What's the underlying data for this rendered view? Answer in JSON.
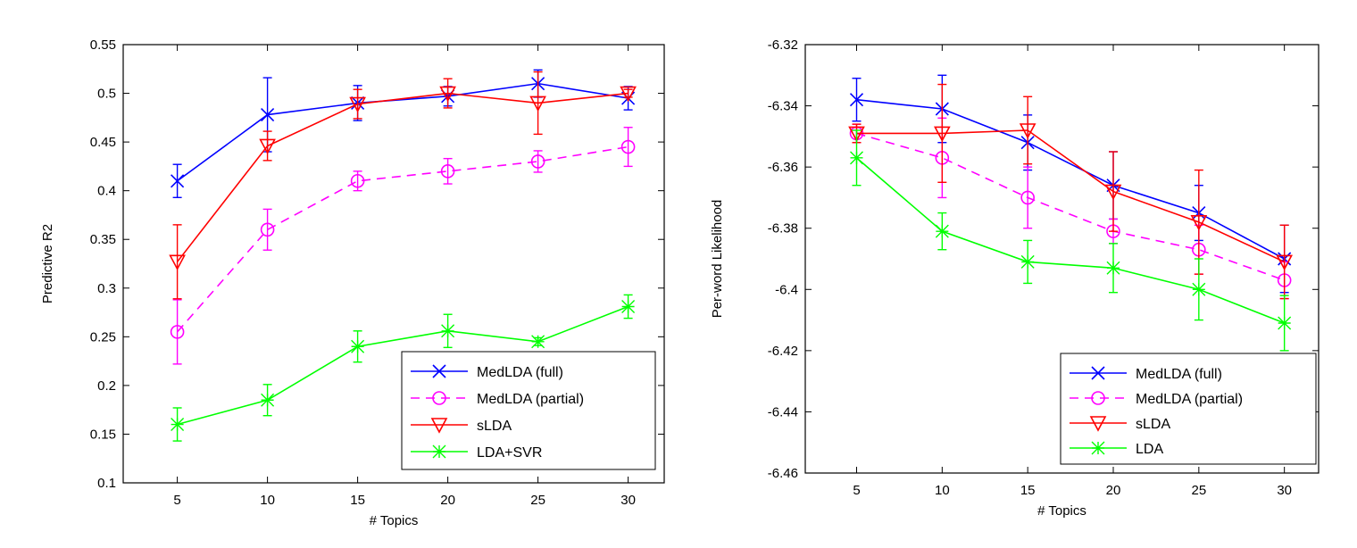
{
  "chart_data": [
    {
      "type": "line",
      "xlabel": "# Topics",
      "ylabel": "Predictive R2",
      "x": [
        5,
        10,
        15,
        20,
        25,
        30
      ],
      "xticks": [
        "5",
        "10",
        "15",
        "20",
        "25",
        "30"
      ],
      "xlim": [
        2,
        32
      ],
      "ylim": [
        0.1,
        0.55
      ],
      "yticks": [
        "0.1",
        "0.15",
        "0.2",
        "0.25",
        "0.3",
        "0.35",
        "0.4",
        "0.45",
        "0.5",
        "0.55"
      ],
      "grid": false,
      "legend_position": "bottom-right",
      "series": [
        {
          "name": "MedLDA (full)",
          "color": "#0000ff",
          "dash": "solid",
          "marker": "x",
          "values": [
            0.41,
            0.478,
            0.49,
            0.497,
            0.51,
            0.495
          ],
          "errors": [
            0.017,
            0.038,
            0.018,
            0.01,
            0.014,
            0.012
          ]
        },
        {
          "name": "MedLDA (partial)",
          "color": "#ff00ff",
          "dash": "dashed",
          "marker": "circle",
          "values": [
            0.255,
            0.36,
            0.41,
            0.42,
            0.43,
            0.445
          ],
          "errors": [
            0.033,
            0.021,
            0.01,
            0.013,
            0.011,
            0.02
          ]
        },
        {
          "name": "sLDA",
          "color": "#ff0000",
          "dash": "solid",
          "marker": "triangle-down",
          "values": [
            0.327,
            0.446,
            0.489,
            0.5,
            0.49,
            0.5
          ],
          "errors": [
            0.038,
            0.015,
            0.015,
            0.015,
            0.032,
            0.004
          ]
        },
        {
          "name": "LDA+SVR",
          "color": "#00ff00",
          "dash": "solid",
          "marker": "star",
          "values": [
            0.16,
            0.185,
            0.24,
            0.256,
            0.245,
            0.281
          ],
          "errors": [
            0.017,
            0.016,
            0.016,
            0.017,
            0.004,
            0.012
          ]
        }
      ]
    },
    {
      "type": "line",
      "xlabel": "# Topics",
      "ylabel": "Per-word Likelihood",
      "x": [
        5,
        10,
        15,
        20,
        25,
        30
      ],
      "xticks": [
        "5",
        "10",
        "15",
        "20",
        "25",
        "30"
      ],
      "xlim": [
        2,
        32
      ],
      "ylim": [
        -6.46,
        -6.32
      ],
      "yticks": [
        "-6.46",
        "-6.44",
        "-6.42",
        "-6.4",
        "-6.38",
        "-6.36",
        "-6.34",
        "-6.32"
      ],
      "grid": false,
      "legend_position": "bottom-right",
      "series": [
        {
          "name": "MedLDA (full)",
          "color": "#0000ff",
          "dash": "solid",
          "marker": "x",
          "values": [
            -6.338,
            -6.341,
            -6.352,
            -6.366,
            -6.375,
            -6.39
          ],
          "errors": [
            0.007,
            0.011,
            0.009,
            0.011,
            0.009,
            0.011
          ]
        },
        {
          "name": "MedLDA (partial)",
          "color": "#ff00ff",
          "dash": "dashed",
          "marker": "circle",
          "values": [
            -6.349,
            -6.357,
            -6.37,
            -6.381,
            -6.387,
            -6.397
          ],
          "errors": [
            0.003,
            0.013,
            0.01,
            0.004,
            0.008,
            0.006
          ]
        },
        {
          "name": "sLDA",
          "color": "#ff0000",
          "dash": "solid",
          "marker": "triangle-down",
          "values": [
            -6.349,
            -6.349,
            -6.348,
            -6.368,
            -6.378,
            -6.391
          ],
          "errors": [
            0.003,
            0.016,
            0.011,
            0.013,
            0.017,
            0.012
          ]
        },
        {
          "name": "LDA",
          "color": "#00ff00",
          "dash": "solid",
          "marker": "star",
          "values": [
            -6.357,
            -6.381,
            -6.391,
            -6.393,
            -6.4,
            -6.411
          ],
          "errors": [
            0.009,
            0.006,
            0.007,
            0.008,
            0.01,
            0.009
          ]
        }
      ]
    }
  ]
}
